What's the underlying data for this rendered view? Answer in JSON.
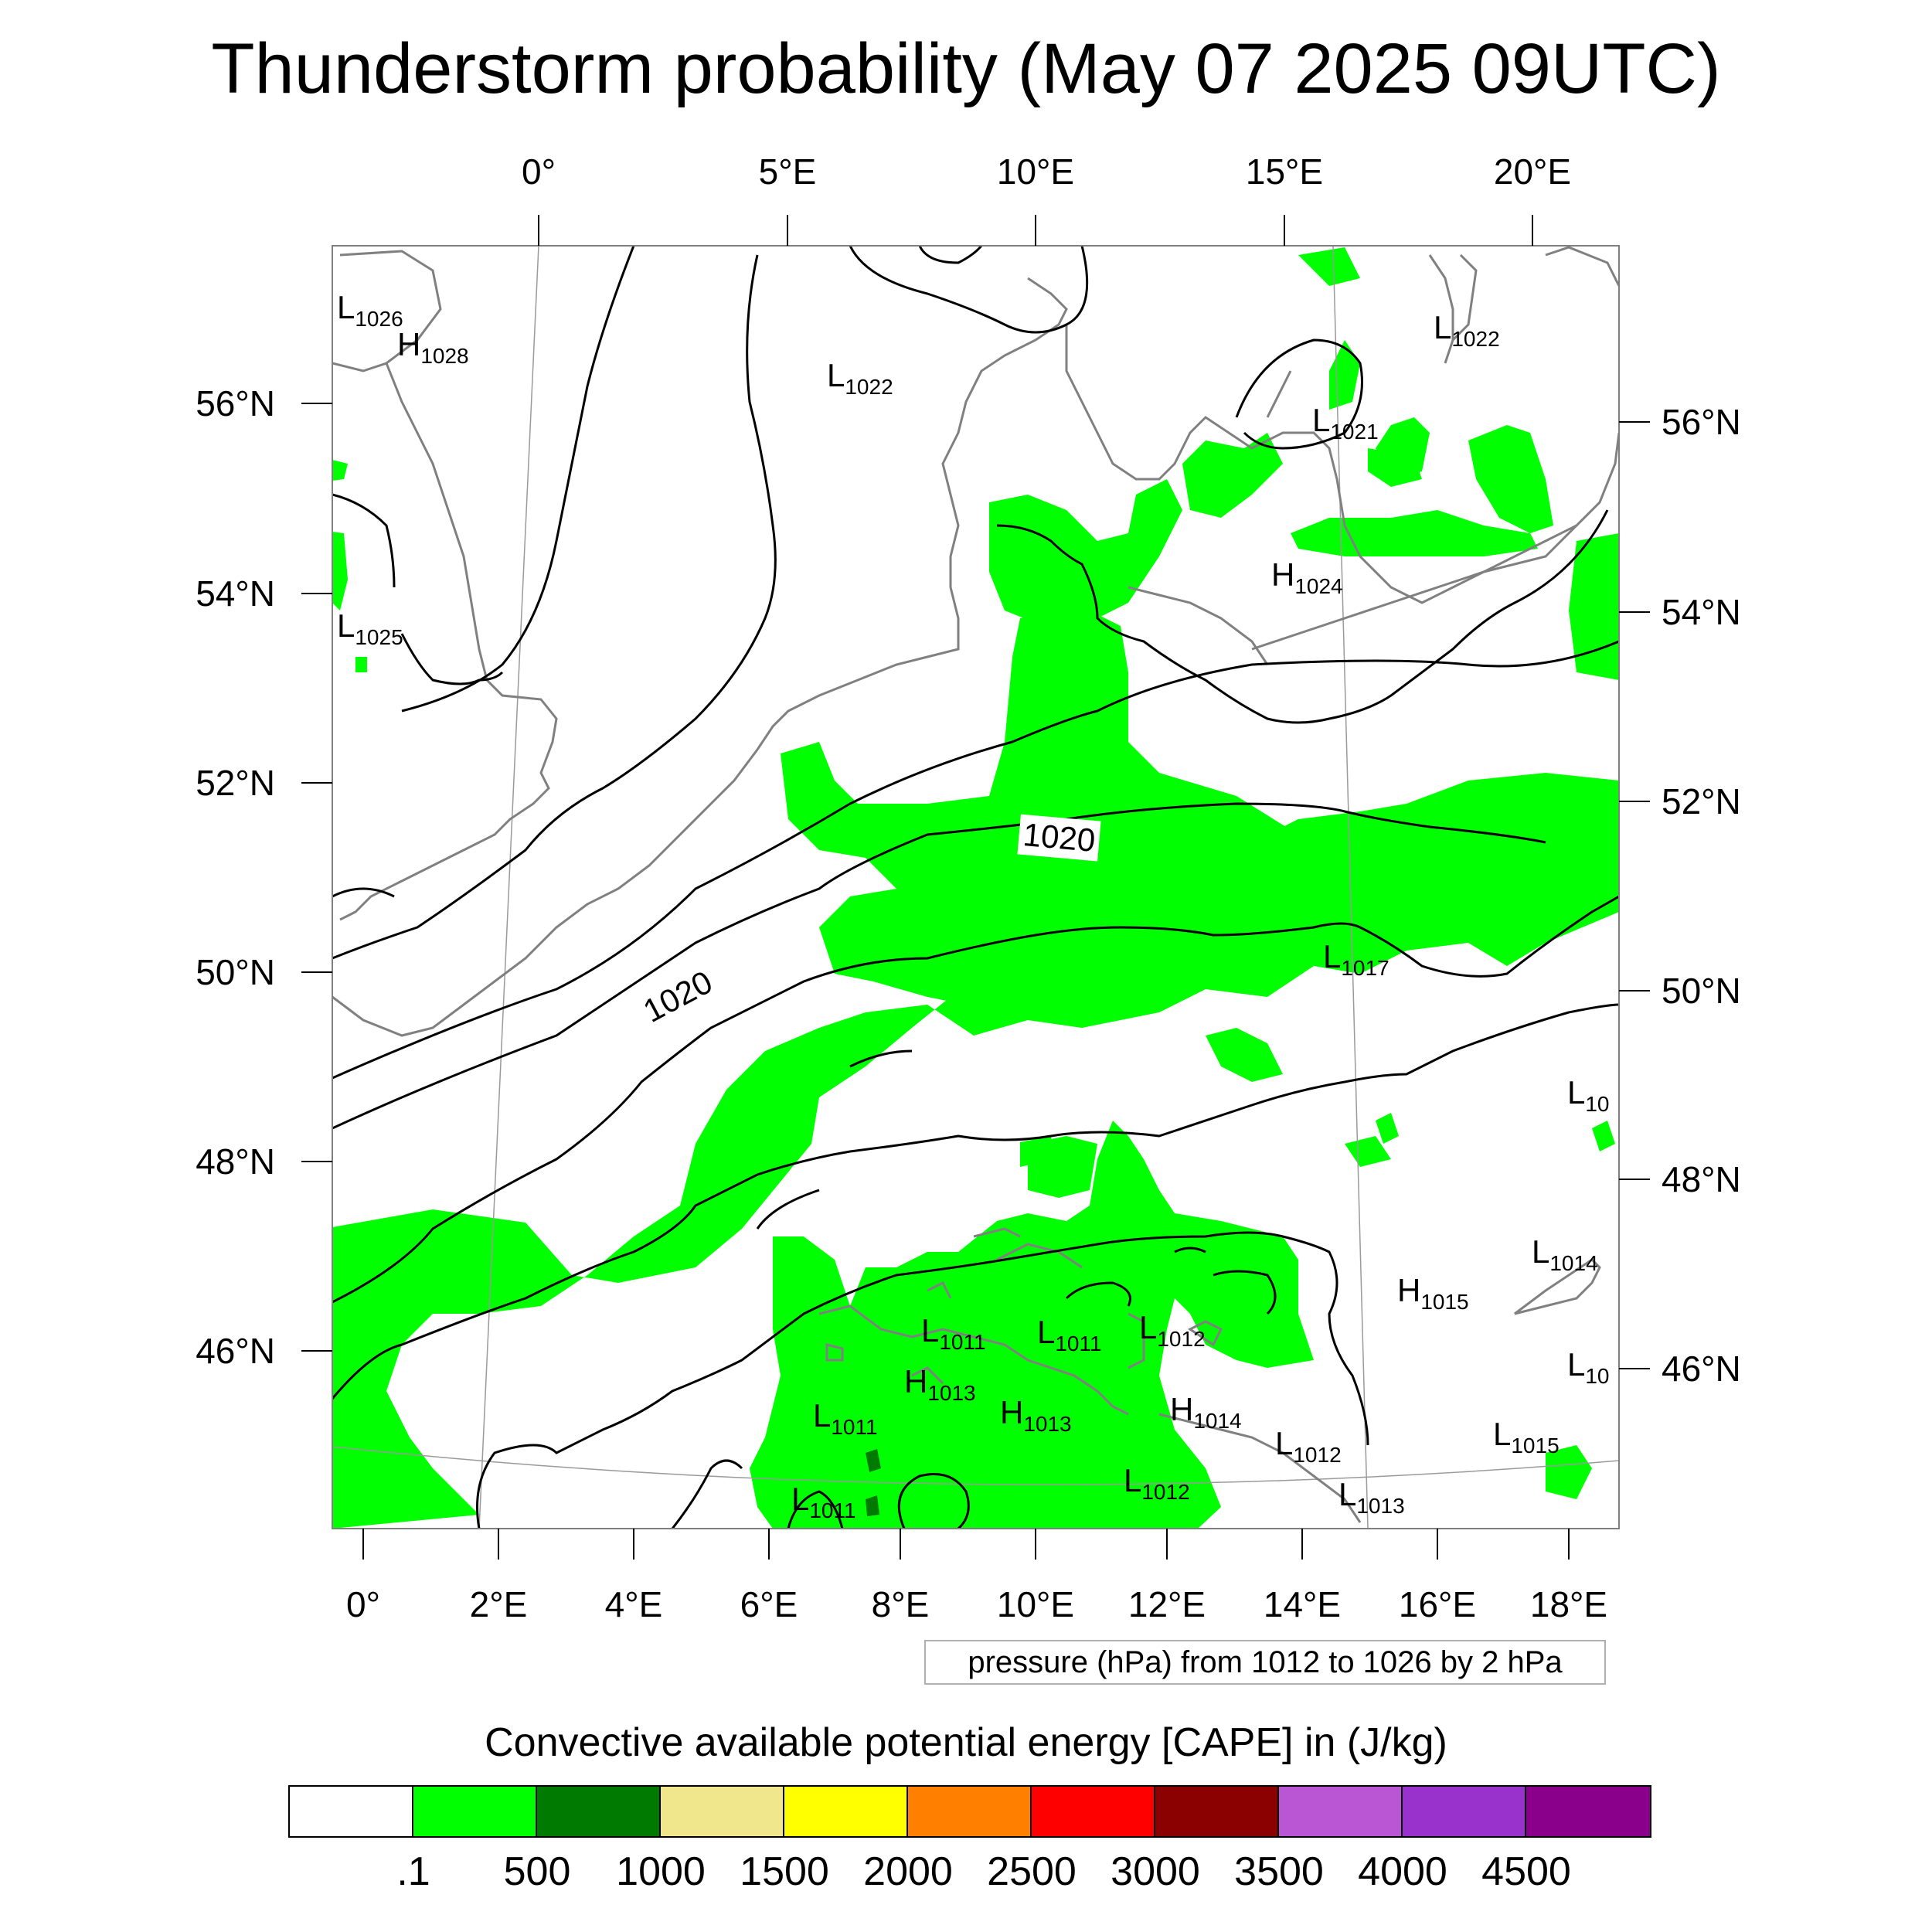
{
  "title": "Thunderstorm probability (May 07 2025 09UTC)",
  "map": {
    "top_lon_labels": [
      "0°",
      "5°E",
      "10°E",
      "15°E",
      "20°E"
    ],
    "bottom_lon_labels": [
      "0°",
      "2°E",
      "4°E",
      "6°E",
      "8°E",
      "10°E",
      "12°E",
      "14°E",
      "16°E",
      "18°E"
    ],
    "left_lat_labels": [
      "56°N",
      "54°N",
      "52°N",
      "50°N",
      "48°N",
      "46°N"
    ],
    "right_lat_labels": [
      "56°N",
      "54°N",
      "52°N",
      "50°N",
      "48°N",
      "46°N"
    ],
    "contour_labels": [
      "1020",
      "1020"
    ],
    "pressure_centers": [
      {
        "type": "L",
        "value": "1026"
      },
      {
        "type": "H",
        "value": "1028"
      },
      {
        "type": "L",
        "value": "1022"
      },
      {
        "type": "L",
        "value": "1022"
      },
      {
        "type": "L",
        "value": "1021"
      },
      {
        "type": "L",
        "value": "1025"
      },
      {
        "type": "H",
        "value": "1024"
      },
      {
        "type": "L",
        "value": "1017"
      },
      {
        "type": "L",
        "value": "10"
      },
      {
        "type": "L",
        "value": "1014"
      },
      {
        "type": "H",
        "value": "1015"
      },
      {
        "type": "L",
        "value": "10"
      },
      {
        "type": "L",
        "value": "1011"
      },
      {
        "type": "L",
        "value": "1011"
      },
      {
        "type": "L",
        "value": "1012"
      },
      {
        "type": "H",
        "value": "1013"
      },
      {
        "type": "L",
        "value": "1011"
      },
      {
        "type": "H",
        "value": "1013"
      },
      {
        "type": "H",
        "value": "1014"
      },
      {
        "type": "L",
        "value": "1012"
      },
      {
        "type": "L",
        "value": "1015"
      },
      {
        "type": "L",
        "value": "1012"
      },
      {
        "type": "L",
        "value": "1011"
      },
      {
        "type": "L",
        "value": "1013"
      }
    ],
    "colors": {
      "cape_low": "#00ff00",
      "cape_mid": "#007a00",
      "isobar": "#000000",
      "coast": "#808080"
    }
  },
  "pressure_note": "pressure (hPa) from 1012 to 1026 by 2 hPa",
  "legend": {
    "title": "Convective available potential energy [CAPE] in (J/kg)",
    "colors": [
      "#ffffff",
      "#00ff00",
      "#007a00",
      "#f0e68c",
      "#ffff00",
      "#ff8000",
      "#ff0000",
      "#8b0000",
      "#ba55d3",
      "#9932cc",
      "#8b008b"
    ],
    "labels": [
      ".1",
      "500",
      "1000",
      "1500",
      "2000",
      "2500",
      "3000",
      "3500",
      "4000",
      "4500"
    ]
  }
}
